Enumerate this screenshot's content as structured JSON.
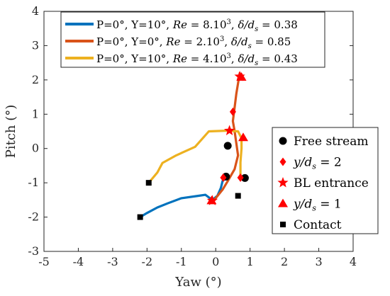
{
  "chart_data": {
    "type": "line",
    "xlabel": "Yaw (°)",
    "ylabel": "Pitch (°)",
    "xlim": [
      -5,
      4
    ],
    "ylim": [
      -3,
      4
    ],
    "xticks": [
      -5,
      -4,
      -3,
      -2,
      -1,
      0,
      1,
      2,
      3,
      4
    ],
    "yticks": [
      -3,
      -2,
      -1,
      0,
      1,
      2,
      3,
      4
    ],
    "grid": false,
    "series": [
      {
        "name": "P=0°, Y=10°, Re = 8.10³, δ/ds = 0.38",
        "color": "#0072BD",
        "points": [
          [
            -2.2,
            -2.0
          ],
          [
            -2.0,
            -1.88
          ],
          [
            -1.7,
            -1.72
          ],
          [
            -1.4,
            -1.6
          ],
          [
            -1.0,
            -1.45
          ],
          [
            -0.5,
            -1.38
          ],
          [
            -0.3,
            -1.35
          ],
          [
            -0.1,
            -1.5
          ],
          [
            0.05,
            -1.38
          ],
          [
            0.15,
            -1.15
          ],
          [
            0.2,
            -0.95
          ],
          [
            0.3,
            -0.85
          ]
        ]
      },
      {
        "name": "P=0°, Y=0°, Re = 2.10³, δ/ds = 0.85",
        "color": "#D95319",
        "points": [
          [
            -0.1,
            -1.55
          ],
          [
            0.0,
            -1.45
          ],
          [
            0.2,
            -1.2
          ],
          [
            0.35,
            -0.95
          ],
          [
            0.55,
            -0.6
          ],
          [
            0.65,
            -0.2
          ],
          [
            0.55,
            0.5
          ],
          [
            0.5,
            0.8
          ],
          [
            0.55,
            1.2
          ],
          [
            0.6,
            1.6
          ],
          [
            0.65,
            1.9
          ],
          [
            0.7,
            2.2
          ],
          [
            0.72,
            2.05
          ]
        ]
      },
      {
        "name": "P=0°, Y=10°, Re = 4.10³, δ/ds = 0.43",
        "color": "#EDB120",
        "points": [
          [
            -1.95,
            -1.0
          ],
          [
            -1.7,
            -0.7
          ],
          [
            -1.55,
            -0.42
          ],
          [
            -1.15,
            -0.2
          ],
          [
            -0.6,
            0.05
          ],
          [
            -0.2,
            0.5
          ],
          [
            0.35,
            0.52
          ],
          [
            0.65,
            0.5
          ],
          [
            0.75,
            0.3
          ],
          [
            0.75,
            0.0
          ],
          [
            0.72,
            -0.4
          ],
          [
            0.72,
            -0.85
          ]
        ]
      }
    ],
    "markers": {
      "free_stream": [
        [
          0.35,
          0.08
        ],
        [
          0.3,
          -0.82
        ],
        [
          0.85,
          -0.86
        ]
      ],
      "y_ds_2": [
        [
          0.22,
          -0.85
        ],
        [
          0.5,
          1.07
        ],
        [
          0.72,
          -0.85
        ]
      ],
      "bl_entrance": [
        [
          -0.1,
          -1.52
        ],
        [
          0.7,
          2.1
        ],
        [
          0.4,
          0.52
        ]
      ],
      "y_ds_1": [
        [
          -0.12,
          -1.52
        ],
        [
          0.75,
          2.08
        ],
        [
          0.8,
          0.32
        ]
      ],
      "contact": [
        [
          -2.2,
          -2.0
        ],
        [
          -1.95,
          -1.0
        ],
        [
          0.65,
          -1.38
        ]
      ]
    },
    "legend1": {
      "placement": "top",
      "entries": [
        {
          "color": "#0072BD",
          "prefix": "P=0°, Y=10°, ",
          "re_label": "Re",
          "re_val": " = 8.10",
          "re_exp": "3",
          "sep": ", ",
          "delta_label": "δ/d",
          "delta_sub": "s",
          "delta_val": " = 0.38"
        },
        {
          "color": "#D95319",
          "prefix": "P=0°, Y=0°, ",
          "re_label": "Re",
          "re_val": " = 2.10",
          "re_exp": "3",
          "sep": ", ",
          "delta_label": "δ/d",
          "delta_sub": "s",
          "delta_val": " = 0.85"
        },
        {
          "color": "#EDB120",
          "prefix": "P=0°, Y=10°, ",
          "re_label": "Re",
          "re_val": " = 4.10",
          "re_exp": "3",
          "sep": ", ",
          "delta_label": "δ/d",
          "delta_sub": "s",
          "delta_val": " = 0.43"
        }
      ]
    },
    "legend2": {
      "placement": "right",
      "entries": [
        {
          "marker": "circle",
          "color": "#000000",
          "label": "Free stream"
        },
        {
          "marker": "diamond",
          "color": "#FF0000",
          "label_pre": "y/d",
          "label_sub": "s",
          "label_post": " = 2"
        },
        {
          "marker": "star",
          "color": "#FF0000",
          "label": "BL entrance"
        },
        {
          "marker": "triangle",
          "color": "#FF0000",
          "label_pre": "y/d",
          "label_sub": "s",
          "label_post": " = 1"
        },
        {
          "marker": "square",
          "color": "#000000",
          "label": "Contact"
        }
      ]
    }
  }
}
